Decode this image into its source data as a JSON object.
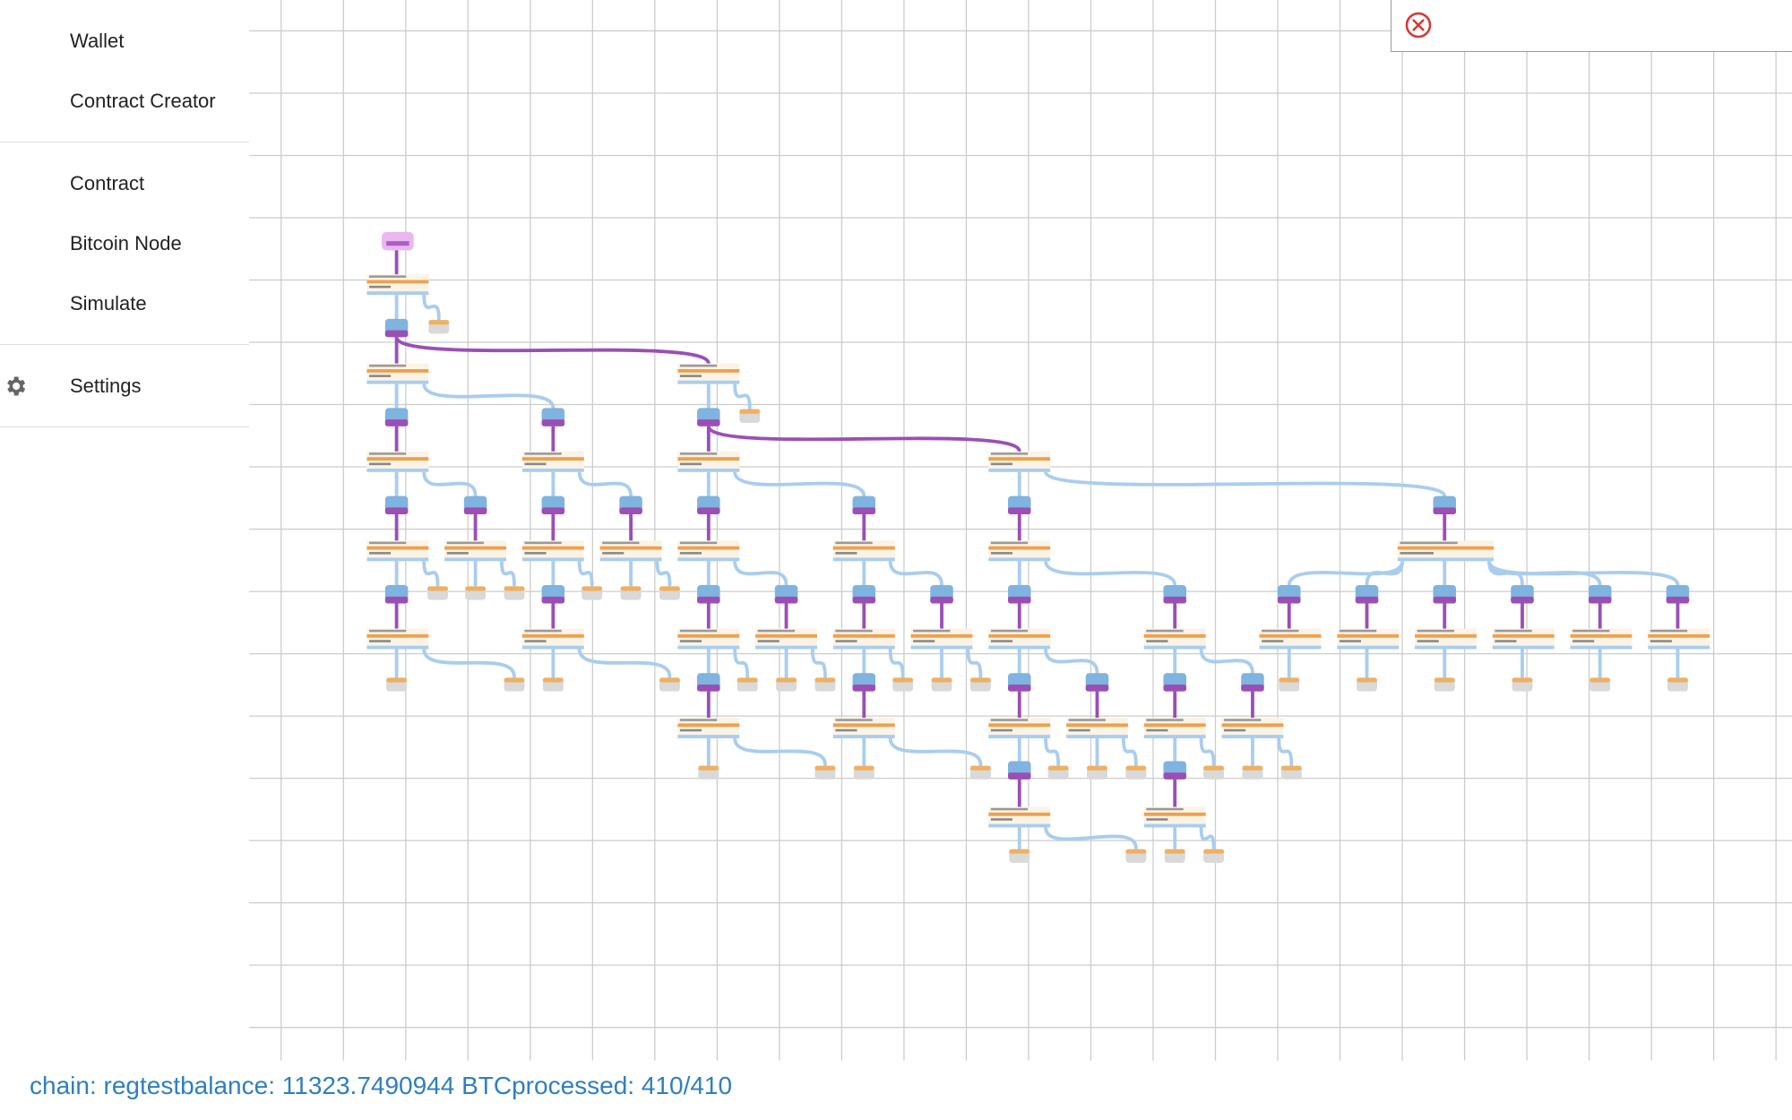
{
  "sidebar": {
    "groups": [
      [
        "Wallet",
        "Contract Creator"
      ],
      [
        "Contract",
        "Bitcoin Node",
        "Simulate"
      ],
      [
        "Settings"
      ]
    ]
  },
  "status": {
    "chain": "chain: regtest",
    "balance": "balance: 11323.7490944 BTC",
    "processed": "processed: 410/410"
  }
}
